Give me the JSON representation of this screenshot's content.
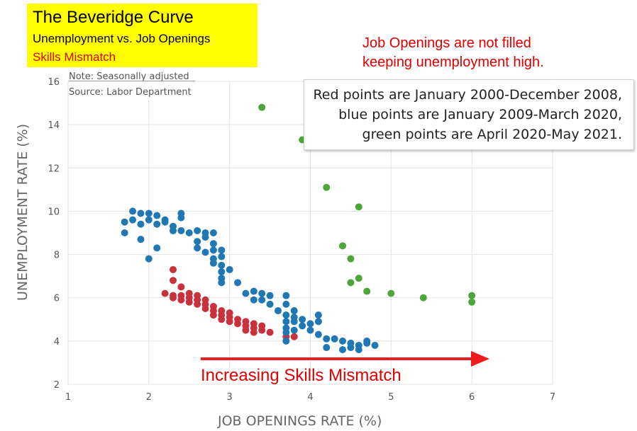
{
  "header": {
    "title": "The Beveridge Curve",
    "subtitle": "Unemployment  vs. Job Openings",
    "subtitle2": "Skills Mismatch",
    "headline_line1": "Job Openings are not filled",
    "headline_line2": "keeping unemployment high."
  },
  "note": {
    "line1": "Note: Seasonally adjusted",
    "line2": "Source: Labor Department"
  },
  "legend": {
    "line1": "Red points are January 2000-December 2008,",
    "line2": "blue points are January 2009-March 2020,",
    "line3": "green points are April 2020-May 2021."
  },
  "annotation": {
    "arrow_label": "Increasing Skills Mismatch",
    "color": "#ee1c1c"
  },
  "colors": {
    "red": "#c8323c",
    "blue": "#1f77b4",
    "green": "#4ca63a"
  },
  "chart_data": {
    "type": "scatter",
    "xlabel": "JOB OPENINGS RATE (%)",
    "ylabel": "UNEMPLOYMENT RATE (%)",
    "xlim": [
      1,
      7
    ],
    "ylim": [
      2,
      16
    ],
    "xticks": [
      1,
      2,
      3,
      4,
      5,
      6,
      7
    ],
    "yticks": [
      2,
      4,
      6,
      8,
      10,
      12,
      14,
      16
    ],
    "grid": true,
    "series": [
      {
        "color": "#c8323c",
        "points": [
          [
            2.3,
            7.3
          ],
          [
            2.3,
            6.8
          ],
          [
            2.4,
            6.5
          ],
          [
            2.2,
            6.2
          ],
          [
            2.3,
            6.1
          ],
          [
            2.3,
            6.0
          ],
          [
            2.4,
            6.1
          ],
          [
            2.4,
            5.9
          ],
          [
            2.5,
            6.2
          ],
          [
            2.5,
            6.0
          ],
          [
            2.5,
            5.8
          ],
          [
            2.6,
            6.1
          ],
          [
            2.6,
            5.9
          ],
          [
            2.6,
            5.7
          ],
          [
            2.7,
            5.9
          ],
          [
            2.7,
            5.7
          ],
          [
            2.7,
            5.5
          ],
          [
            2.8,
            5.6
          ],
          [
            2.8,
            5.4
          ],
          [
            2.8,
            5.2
          ],
          [
            2.9,
            5.4
          ],
          [
            2.9,
            5.2
          ],
          [
            2.9,
            5.0
          ],
          [
            3.0,
            5.3
          ],
          [
            3.0,
            5.1
          ],
          [
            3.0,
            4.9
          ],
          [
            3.1,
            5.0
          ],
          [
            3.1,
            4.8
          ],
          [
            3.2,
            4.9
          ],
          [
            3.2,
            4.7
          ],
          [
            3.2,
            4.5
          ],
          [
            3.3,
            4.8
          ],
          [
            3.3,
            4.6
          ],
          [
            3.3,
            4.4
          ],
          [
            3.4,
            4.7
          ],
          [
            3.4,
            4.5
          ],
          [
            3.5,
            4.4
          ],
          [
            3.8,
            4.2
          ],
          [
            3.7,
            4.2
          ]
        ]
      },
      {
        "color": "#1f77b4",
        "points": [
          [
            1.7,
            9.5
          ],
          [
            1.7,
            9.0
          ],
          [
            1.8,
            10.0
          ],
          [
            1.8,
            9.6
          ],
          [
            1.9,
            9.9
          ],
          [
            1.9,
            9.4
          ],
          [
            2.0,
            9.9
          ],
          [
            2.0,
            9.6
          ],
          [
            1.9,
            8.7
          ],
          [
            2.0,
            7.8
          ],
          [
            2.1,
            9.8
          ],
          [
            2.1,
            9.4
          ],
          [
            2.1,
            8.3
          ],
          [
            2.2,
            9.6
          ],
          [
            2.2,
            9.5
          ],
          [
            2.3,
            9.3
          ],
          [
            2.3,
            9.1
          ],
          [
            2.4,
            9.9
          ],
          [
            2.4,
            9.7
          ],
          [
            2.4,
            9.1
          ],
          [
            2.5,
            9.0
          ],
          [
            2.6,
            9.1
          ],
          [
            2.6,
            8.6
          ],
          [
            2.6,
            8.3
          ],
          [
            2.7,
            9.0
          ],
          [
            2.7,
            8.8
          ],
          [
            2.7,
            8.1
          ],
          [
            2.8,
            9.0
          ],
          [
            2.8,
            8.5
          ],
          [
            2.8,
            8.2
          ],
          [
            2.8,
            7.8
          ],
          [
            2.8,
            7.6
          ],
          [
            2.9,
            8.2
          ],
          [
            2.9,
            7.9
          ],
          [
            2.9,
            7.5
          ],
          [
            2.9,
            7.2
          ],
          [
            2.9,
            6.9
          ],
          [
            2.9,
            6.7
          ],
          [
            3.0,
            7.3
          ],
          [
            3.1,
            6.7
          ],
          [
            3.2,
            6.2
          ],
          [
            3.3,
            6.3
          ],
          [
            3.3,
            5.9
          ],
          [
            3.4,
            6.2
          ],
          [
            3.4,
            5.9
          ],
          [
            3.5,
            6.1
          ],
          [
            3.5,
            5.7
          ],
          [
            3.6,
            5.4
          ],
          [
            3.7,
            6.1
          ],
          [
            3.7,
            5.7
          ],
          [
            3.7,
            5.2
          ],
          [
            3.7,
            4.9
          ],
          [
            3.7,
            4.6
          ],
          [
            3.7,
            4.4
          ],
          [
            3.8,
            5.4
          ],
          [
            3.8,
            5.1
          ],
          [
            3.8,
            4.9
          ],
          [
            3.8,
            4.5
          ],
          [
            3.7,
            4.0
          ],
          [
            3.9,
            5.0
          ],
          [
            3.9,
            4.7
          ],
          [
            4.0,
            4.8
          ],
          [
            4.0,
            4.5
          ],
          [
            4.1,
            5.2
          ],
          [
            4.1,
            4.9
          ],
          [
            4.1,
            4.3
          ],
          [
            4.2,
            4.1
          ],
          [
            4.3,
            4.1
          ],
          [
            4.4,
            4.0
          ],
          [
            4.5,
            3.7
          ],
          [
            4.5,
            3.9
          ],
          [
            4.6,
            3.8
          ],
          [
            4.6,
            3.6
          ],
          [
            4.7,
            3.9
          ],
          [
            4.7,
            4.0
          ],
          [
            4.8,
            3.8
          ],
          [
            4.2,
            3.7
          ],
          [
            4.4,
            3.6
          ]
        ]
      },
      {
        "color": "#4ca63a",
        "points": [
          [
            3.4,
            14.8
          ],
          [
            3.9,
            13.3
          ],
          [
            4.2,
            11.1
          ],
          [
            4.6,
            10.2
          ],
          [
            4.4,
            8.4
          ],
          [
            4.5,
            7.8
          ],
          [
            4.6,
            6.9
          ],
          [
            4.5,
            6.7
          ],
          [
            4.7,
            6.3
          ],
          [
            5.0,
            6.2
          ],
          [
            5.4,
            6.0
          ],
          [
            6.0,
            6.1
          ],
          [
            6.0,
            5.8
          ]
        ]
      }
    ]
  }
}
